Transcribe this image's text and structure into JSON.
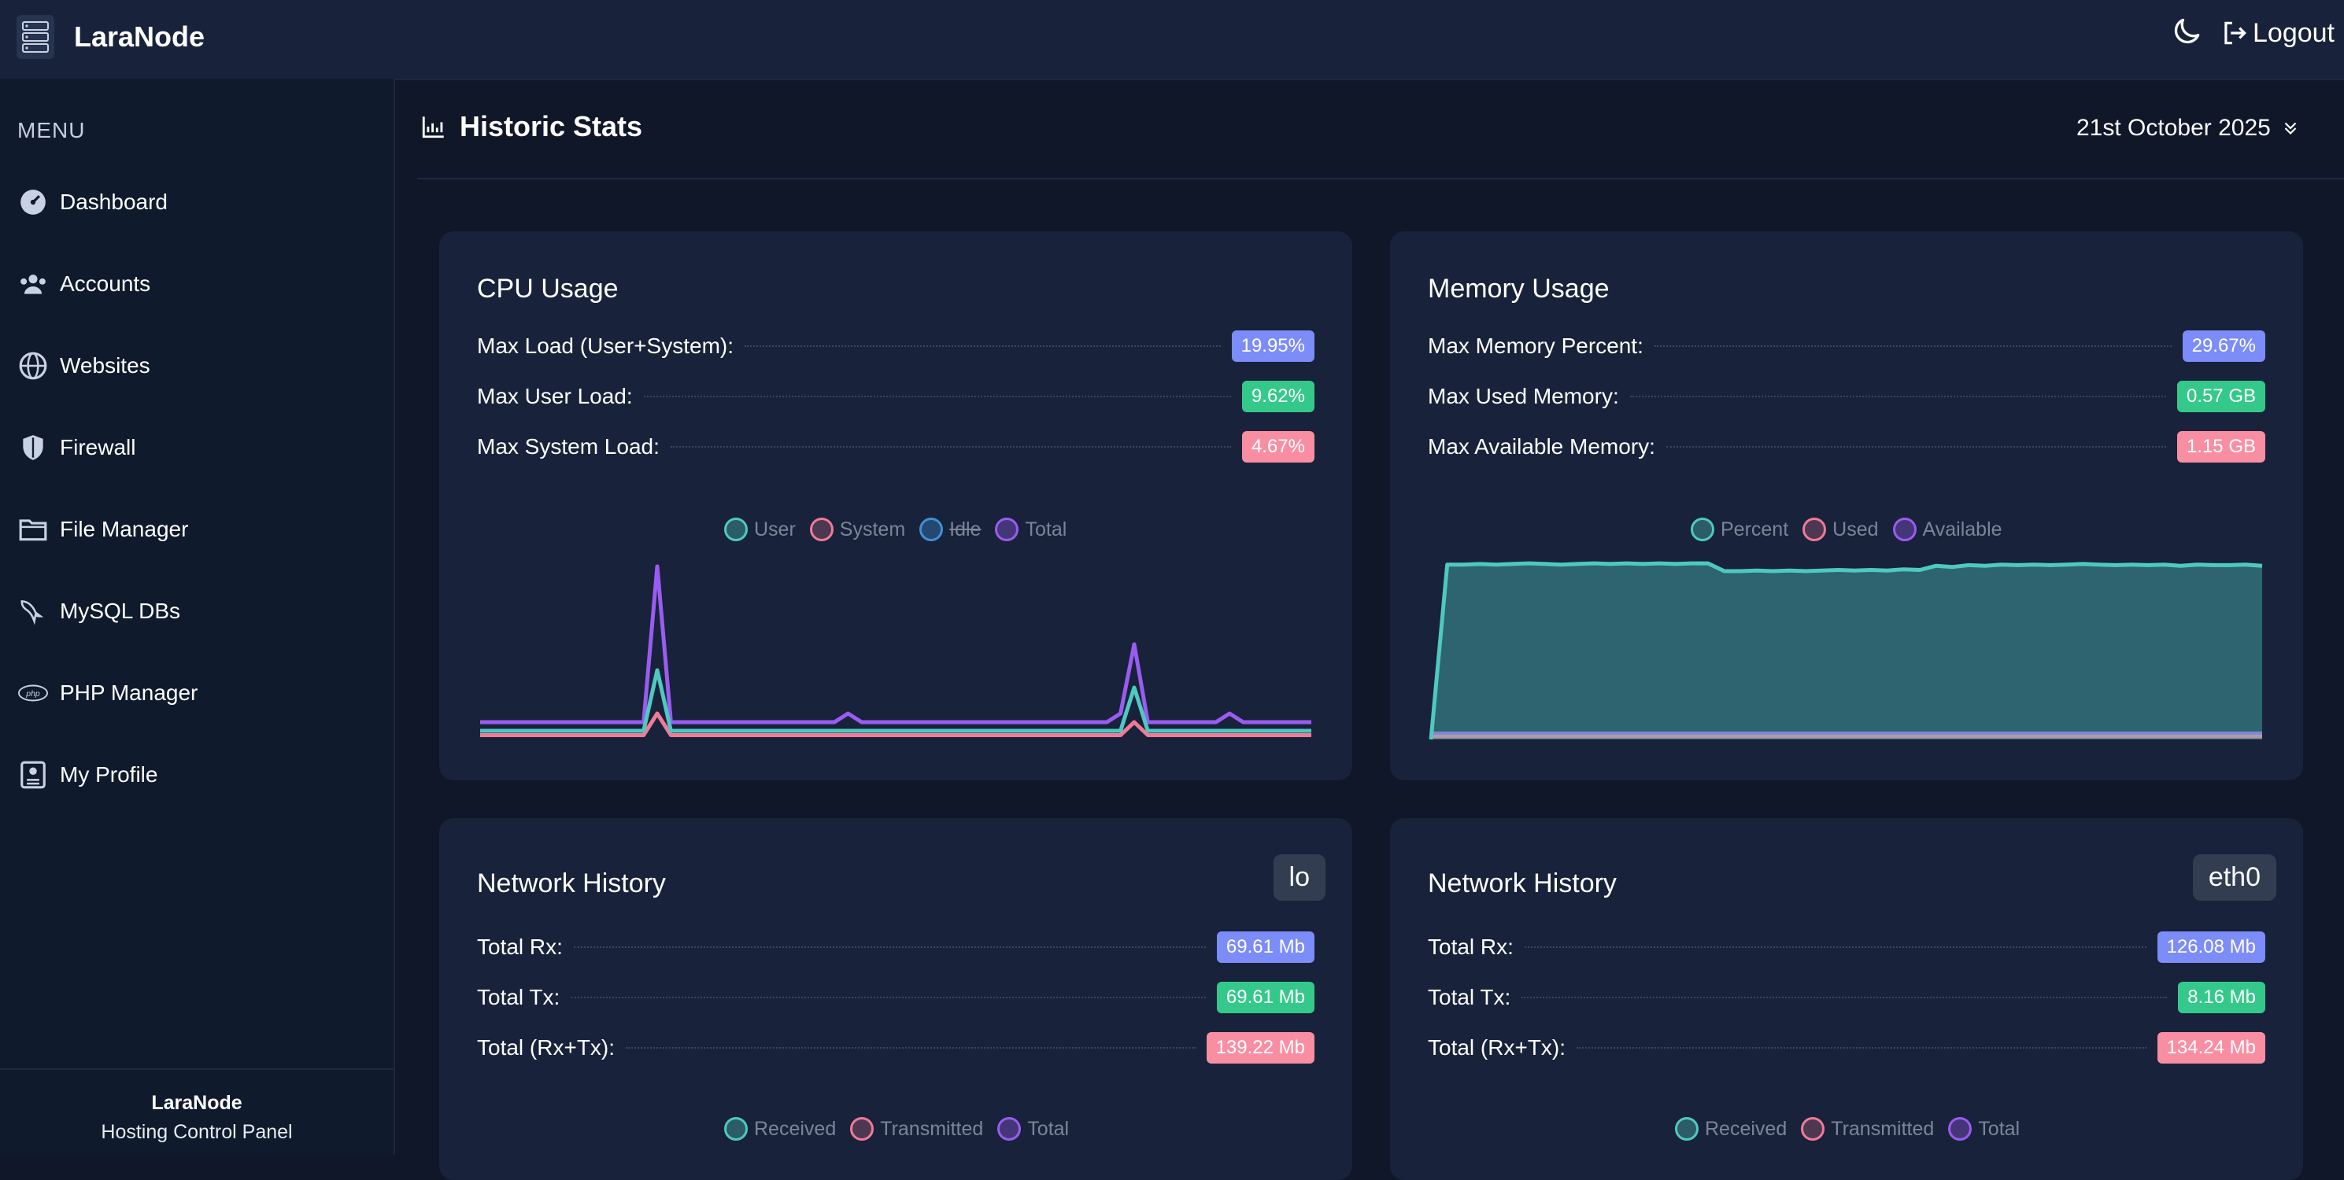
{
  "app": {
    "name": "LaraNode",
    "logout_label": "Logout"
  },
  "sidebar": {
    "menu_title": "MENU",
    "items": [
      {
        "label": "Dashboard",
        "icon": "speedometer-icon"
      },
      {
        "label": "Accounts",
        "icon": "users-icon"
      },
      {
        "label": "Websites",
        "icon": "globe-www-icon"
      },
      {
        "label": "Firewall",
        "icon": "shield-icon"
      },
      {
        "label": "File Manager",
        "icon": "folder-icon"
      },
      {
        "label": "MySQL DBs",
        "icon": "mysql-dolphin-icon"
      },
      {
        "label": "PHP Manager",
        "icon": "php-icon"
      },
      {
        "label": "My Profile",
        "icon": "profile-card-icon"
      }
    ],
    "footer_name": "LaraNode",
    "footer_subtitle": "Hosting Control Panel"
  },
  "page": {
    "title": "Historic Stats",
    "date_selected": "21st October 2025"
  },
  "cpu": {
    "title": "CPU Usage",
    "stats": [
      {
        "label": "Max Load (User+System):",
        "value": "19.95%"
      },
      {
        "label": "Max User Load:",
        "value": "9.62%"
      },
      {
        "label": "Max System Load:",
        "value": "4.67%"
      }
    ],
    "legend": [
      "User",
      "System",
      "Idle",
      "Total"
    ]
  },
  "memory": {
    "title": "Memory Usage",
    "stats": [
      {
        "label": "Max Memory Percent:",
        "value": "29.67%"
      },
      {
        "label": "Max Used Memory:",
        "value": "0.57 GB"
      },
      {
        "label": "Max Available Memory:",
        "value": "1.15 GB"
      }
    ],
    "legend": [
      "Percent",
      "Used",
      "Available"
    ]
  },
  "net_lo": {
    "title": "Network History",
    "iface": "lo",
    "stats": [
      {
        "label": "Total Rx:",
        "value": "69.61 Mb"
      },
      {
        "label": "Total Tx:",
        "value": "69.61 Mb"
      },
      {
        "label": "Total (Rx+Tx):",
        "value": "139.22 Mb"
      }
    ],
    "legend": [
      "Received",
      "Transmitted",
      "Total"
    ]
  },
  "net_eth0": {
    "title": "Network History",
    "iface": "eth0",
    "stats": [
      {
        "label": "Total Rx:",
        "value": "126.08 Mb"
      },
      {
        "label": "Total Tx:",
        "value": "8.16 Mb"
      },
      {
        "label": "Total (Rx+Tx):",
        "value": "134.24 Mb"
      }
    ],
    "legend": [
      "Received",
      "Transmitted",
      "Total"
    ]
  },
  "colors": {
    "teal": "#4fc9c0",
    "pink": "#f07a98",
    "blue": "#3f8fd8",
    "purple": "#9a5cf0",
    "badge_blue": "#7c8cf8",
    "badge_green": "#34c98b",
    "badge_red": "#f98ea3"
  },
  "chart_data": [
    {
      "type": "line",
      "series": [
        {
          "name": "User",
          "values": [
            1,
            1,
            1,
            1,
            1,
            1,
            1,
            1,
            1,
            1,
            1,
            1,
            1,
            8,
            1,
            1,
            1,
            1,
            1,
            1,
            1,
            1,
            1,
            1,
            1,
            1,
            1,
            1,
            1,
            1,
            1,
            1,
            1,
            1,
            1,
            1,
            1,
            1,
            1,
            1,
            1,
            1,
            1,
            1,
            1,
            1,
            1,
            1,
            6,
            1,
            1,
            1,
            1,
            1,
            1,
            1,
            1,
            1,
            1,
            1,
            1,
            1
          ]
        },
        {
          "name": "System",
          "values": [
            0.5,
            0.5,
            0.5,
            0.5,
            0.5,
            0.5,
            0.5,
            0.5,
            0.5,
            0.5,
            0.5,
            0.5,
            0.5,
            3,
            0.5,
            0.5,
            0.5,
            0.5,
            0.5,
            0.5,
            0.5,
            0.5,
            0.5,
            0.5,
            0.5,
            0.5,
            0.5,
            0.5,
            0.5,
            0.5,
            0.5,
            0.5,
            0.5,
            0.5,
            0.5,
            0.5,
            0.5,
            0.5,
            0.5,
            0.5,
            0.5,
            0.5,
            0.5,
            0.5,
            0.5,
            0.5,
            0.5,
            0.5,
            2,
            0.5,
            0.5,
            0.5,
            0.5,
            0.5,
            0.5,
            0.5,
            0.5,
            0.5,
            0.5,
            0.5,
            0.5,
            0.5
          ]
        },
        {
          "name": "Total",
          "values": [
            2,
            2,
            2,
            2,
            2,
            2,
            2,
            2,
            2,
            2,
            2,
            2,
            2,
            20,
            2,
            2,
            2,
            2,
            2,
            2,
            2,
            2,
            2,
            2,
            2,
            2,
            2,
            3,
            2,
            2,
            2,
            2,
            2,
            2,
            2,
            2,
            2,
            2,
            2,
            2,
            2,
            2,
            2,
            2,
            2,
            2,
            2,
            3,
            11,
            2,
            2,
            2,
            2,
            2,
            2,
            3,
            2,
            2,
            2,
            2,
            2,
            2
          ]
        }
      ],
      "ylim": [
        0,
        22
      ]
    },
    {
      "type": "area",
      "series": [
        {
          "name": "Percent",
          "values": [
            0,
            29.4,
            29.4,
            29.5,
            29.4,
            29.5,
            29.6,
            29.5,
            29.4,
            29.5,
            29.6,
            29.5,
            29.6,
            29.5,
            29.6,
            29.5,
            29.6,
            29.6,
            28.3,
            28.3,
            28.4,
            28.3,
            28.4,
            28.3,
            28.4,
            28.5,
            28.4,
            28.5,
            28.4,
            28.6,
            28.5,
            29.2,
            29.0,
            29.3,
            29.2,
            29.4,
            29.3,
            29.4,
            29.3,
            29.4,
            29.5,
            29.4,
            29.3,
            29.4,
            29.3,
            29.4,
            29.2,
            29.4,
            29.3,
            29.3,
            29.4,
            29.2
          ]
        },
        {
          "name": "Used",
          "values": [
            0.5,
            0.5,
            0.5,
            0.5,
            0.5,
            0.5,
            0.5,
            0.5,
            0.5,
            0.5,
            0.5,
            0.5,
            0.5,
            0.5,
            0.5,
            0.5,
            0.5,
            0.5,
            0.5,
            0.5,
            0.5,
            0.5,
            0.5,
            0.5,
            0.5,
            0.5,
            0.5,
            0.5,
            0.5,
            0.5,
            0.5,
            0.5,
            0.5,
            0.5,
            0.5,
            0.5,
            0.5,
            0.5,
            0.5,
            0.5,
            0.5,
            0.5,
            0.5,
            0.5,
            0.5,
            0.5,
            0.5,
            0.5,
            0.5,
            0.5,
            0.5,
            0.5
          ]
        },
        {
          "name": "Available",
          "values": [
            1,
            1,
            1,
            1,
            1,
            1,
            1,
            1,
            1,
            1,
            1,
            1,
            1,
            1,
            1,
            1,
            1,
            1,
            1,
            1,
            1,
            1,
            1,
            1,
            1,
            1,
            1,
            1,
            1,
            1,
            1,
            1,
            1,
            1,
            1,
            1,
            1,
            1,
            1,
            1,
            1,
            1,
            1,
            1,
            1,
            1,
            1,
            1,
            1,
            1,
            1,
            1
          ]
        }
      ],
      "ylim": [
        0,
        32
      ]
    }
  ]
}
